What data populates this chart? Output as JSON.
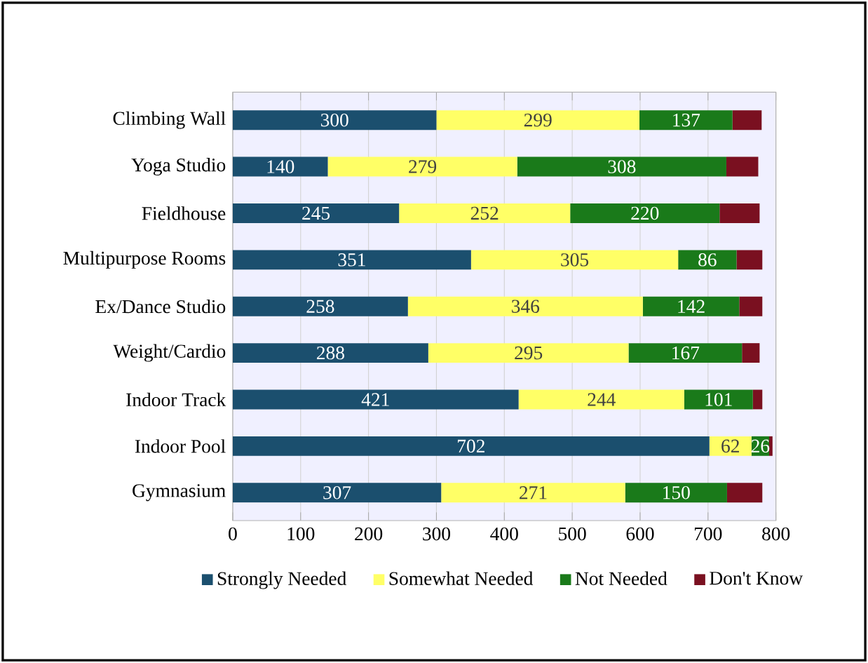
{
  "chart_data": {
    "type": "bar",
    "orientation": "horizontal",
    "stacked": true,
    "categories": [
      "Climbing Wall",
      "Yoga Studio",
      "Fieldhouse",
      "Multipurpose Rooms",
      "Ex/Dance Studio",
      "Weight/Cardio",
      "Indoor Track",
      "Indoor Pool",
      "Gymnasium"
    ],
    "series": [
      {
        "name": "Strongly Needed",
        "color": "#1b4f6e",
        "values": [
          300,
          140,
          245,
          351,
          258,
          288,
          421,
          702,
          307
        ],
        "value_labels": [
          "300",
          "140",
          "245",
          "351",
          "258",
          "288",
          "421",
          "702",
          "307"
        ]
      },
      {
        "name": "Somewhat Needed",
        "color": "#ffff66",
        "values": [
          299,
          279,
          252,
          305,
          346,
          295,
          244,
          62,
          271
        ],
        "value_labels": [
          "299",
          "279",
          "252",
          "305",
          "346",
          "295",
          "244",
          "62",
          "271"
        ]
      },
      {
        "name": "Not Needed",
        "color": "#1a7a1a",
        "values": [
          137,
          308,
          220,
          86,
          142,
          167,
          101,
          26,
          150
        ],
        "value_labels": [
          "137",
          "308",
          "220",
          "86",
          "142",
          "167",
          "101",
          "26",
          "150"
        ]
      },
      {
        "name": "Don't Know",
        "color": "#7a1020",
        "values": [
          43,
          47,
          59,
          38,
          34,
          26,
          14,
          5,
          52
        ]
      }
    ],
    "xlim": [
      0,
      800
    ],
    "xticks": [
      0,
      100,
      200,
      300,
      400,
      500,
      600,
      700,
      800
    ],
    "grid": "x",
    "legend": "bottom"
  }
}
